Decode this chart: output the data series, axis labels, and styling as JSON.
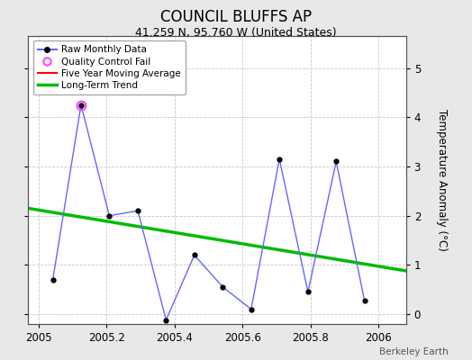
{
  "title": "COUNCIL BLUFFS AP",
  "subtitle": "41.259 N, 95.760 W (United States)",
  "ylabel_right": "Temperature Anomaly (°C)",
  "watermark": "Berkeley Earth",
  "background_color": "#e8e8e8",
  "plot_bg_color": "#ffffff",
  "grid_color": "#c8c8c8",
  "xlim": [
    2004.97,
    2006.08
  ],
  "ylim": [
    -0.2,
    5.65
  ],
  "yticks": [
    0,
    1,
    2,
    3,
    4,
    5
  ],
  "xticks": [
    2005,
    2005.2,
    2005.4,
    2005.6,
    2005.8,
    2006
  ],
  "xtick_labels": [
    "2005",
    "2005.2",
    "2005.4",
    "2005.6",
    "2005.8",
    "2006"
  ],
  "raw_x": [
    2005.042,
    2005.125,
    2005.208,
    2005.292,
    2005.375,
    2005.458,
    2005.542,
    2005.625,
    2005.708,
    2005.792,
    2005.875,
    2005.958
  ],
  "raw_y": [
    0.7,
    4.25,
    2.0,
    2.1,
    -0.12,
    1.2,
    0.55,
    0.1,
    3.15,
    0.45,
    3.1,
    0.28
  ],
  "qc_fail_x": [
    2005.125
  ],
  "qc_fail_y": [
    4.25
  ],
  "trend_x": [
    2004.97,
    2006.08
  ],
  "trend_y": [
    2.15,
    0.88
  ],
  "raw_line_color": "#6666ff",
  "raw_marker_color": "#000000",
  "qc_color": "#ff44ff",
  "mavg_color": "#ff0000",
  "trend_color": "#00bb00",
  "title_fontsize": 12,
  "subtitle_fontsize": 9,
  "tick_fontsize": 8.5,
  "ylabel_fontsize": 8.5
}
